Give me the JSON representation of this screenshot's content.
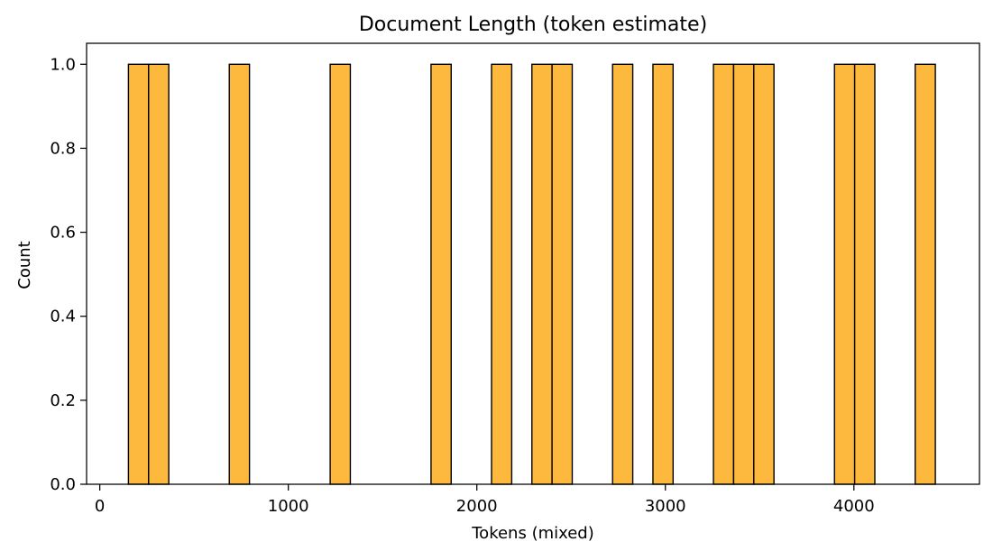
{
  "chart_data": {
    "type": "bar",
    "title": "Document Length (token estimate)",
    "xlabel": "Tokens (mixed)",
    "ylabel": "Count",
    "xlim": [
      -70,
      4666
    ],
    "ylim": [
      0,
      1.05
    ],
    "xticks": [
      0,
      1000,
      2000,
      3000,
      4000
    ],
    "yticks": [
      0.0,
      0.2,
      0.4,
      0.6,
      0.8,
      1.0
    ],
    "xtick_labels": [
      "0",
      "1000",
      "2000",
      "3000",
      "4000"
    ],
    "ytick_labels": [
      "0.0",
      "0.2",
      "0.4",
      "0.6",
      "0.8",
      "1.0"
    ],
    "bin_width": 107,
    "bars": [
      {
        "x0": 152,
        "count": 1
      },
      {
        "x0": 259,
        "count": 1
      },
      {
        "x0": 687,
        "count": 1
      },
      {
        "x0": 1222,
        "count": 1
      },
      {
        "x0": 1757,
        "count": 1
      },
      {
        "x0": 2078,
        "count": 1
      },
      {
        "x0": 2292,
        "count": 1
      },
      {
        "x0": 2399,
        "count": 1
      },
      {
        "x0": 2720,
        "count": 1
      },
      {
        "x0": 2934,
        "count": 1
      },
      {
        "x0": 3255,
        "count": 1
      },
      {
        "x0": 3362,
        "count": 1
      },
      {
        "x0": 3469,
        "count": 1
      },
      {
        "x0": 3897,
        "count": 1
      },
      {
        "x0": 4004,
        "count": 1
      },
      {
        "x0": 4325,
        "count": 1
      }
    ],
    "grid": false,
    "colors": {
      "bar_fill": "#fdb93d",
      "bar_edge": "#000000"
    }
  }
}
